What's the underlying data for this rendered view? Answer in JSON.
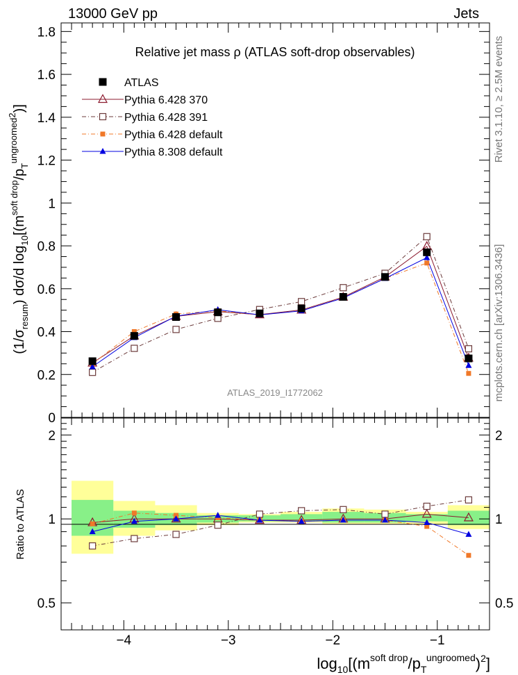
{
  "header": {
    "left": "13000 GeV pp",
    "right": "Jets"
  },
  "title": "Relative jet mass  ρ (ATLAS soft-drop observables)",
  "side_labels": {
    "top": "Rivet 3.1.10, ≥ 2.5M events",
    "bottom": "mcplots.cern.ch [arXiv:1306.3436]"
  },
  "watermark": "ATLAS_2019_I1772062",
  "ratio_ylabel": "Ratio to ATLAS",
  "colors": {
    "data": "#000000",
    "p370": "#8b1a2e",
    "p391": "#6b3a3a",
    "p6def": "#f07828",
    "p8": "#0000e0",
    "band_inner": "#88f088",
    "band_outer": "#ffff99"
  },
  "chart_data": {
    "type": "line",
    "xlabel": "log10[(m soft drop / pT ungroomed)2]",
    "ylabel": "(1/σresum) dσ/d log10[(m soft drop/pT ungroomed)2]",
    "x_ticks": [
      "−4",
      "−3",
      "−2",
      "−1"
    ],
    "x_tick_values": [
      -4,
      -3,
      -2,
      -1
    ],
    "xlim": [
      -4.6,
      -0.5
    ],
    "ylim": [
      0,
      1.84
    ],
    "y_ticks": [
      "0",
      "0.2",
      "0.4",
      "0.6",
      "0.8",
      "1",
      "1.2",
      "1.4",
      "1.6",
      "1.8"
    ],
    "y_tick_values": [
      0,
      0.2,
      0.4,
      0.6,
      0.8,
      1.0,
      1.2,
      1.4,
      1.6,
      1.8
    ],
    "ratio_ylim": [
      0.4,
      2.3
    ],
    "ratio_y_ticks": [
      "0.5",
      "1",
      "2"
    ],
    "ratio_y_tick_values": [
      0.5,
      1,
      2
    ],
    "bin_edges": [
      -4.5,
      -4.1,
      -3.7,
      -3.3,
      -2.9,
      -2.5,
      -2.1,
      -1.7,
      -1.3,
      -0.9,
      -0.5
    ],
    "x": [
      -4.3,
      -3.9,
      -3.5,
      -3.1,
      -2.7,
      -2.3,
      -1.9,
      -1.5,
      -1.1,
      -0.7
    ],
    "ratio_band_inner": [
      [
        0.87,
        1.17
      ],
      [
        0.93,
        1.07
      ],
      [
        0.95,
        1.05
      ],
      [
        0.97,
        1.03
      ],
      [
        0.98,
        1.03
      ],
      [
        0.98,
        1.04
      ],
      [
        0.97,
        1.06
      ],
      [
        0.97,
        1.05
      ],
      [
        0.98,
        1.04
      ],
      [
        0.95,
        1.07
      ]
    ],
    "ratio_band_outer": [
      [
        0.75,
        1.37
      ],
      [
        0.87,
        1.16
      ],
      [
        0.91,
        1.12
      ],
      [
        0.95,
        1.05
      ],
      [
        0.97,
        1.04
      ],
      [
        0.97,
        1.06
      ],
      [
        0.96,
        1.09
      ],
      [
        0.96,
        1.08
      ],
      [
        0.96,
        1.06
      ],
      [
        0.92,
        1.12
      ]
    ],
    "series": [
      {
        "name": "ATLAS",
        "color": "#000000",
        "marker": "square-filled",
        "line": "none",
        "values": [
          0.262,
          0.38,
          0.468,
          0.49,
          0.485,
          0.508,
          0.562,
          0.655,
          0.77,
          0.275
        ]
      },
      {
        "name": "Pythia 6.428 370",
        "color": "#8b1a2e",
        "marker": "triangle-open",
        "line": "solid",
        "values": [
          0.254,
          0.38,
          0.471,
          0.493,
          0.479,
          0.501,
          0.561,
          0.655,
          0.798,
          0.277
        ],
        "ratio": [
          0.97,
          1.0,
          1.0,
          1.0,
          0.99,
          0.99,
          1.0,
          1.0,
          1.04,
          1.01
        ]
      },
      {
        "name": "Pythia 6.428 391",
        "color": "#6b3a3a",
        "marker": "square-open",
        "line": "dashdot",
        "values": [
          0.21,
          0.322,
          0.41,
          0.462,
          0.503,
          0.54,
          0.605,
          0.672,
          0.843,
          0.32
        ],
        "ratio": [
          0.8,
          0.85,
          0.88,
          0.95,
          1.04,
          1.07,
          1.08,
          1.04,
          1.11,
          1.17
        ]
      },
      {
        "name": "Pythia 6.428 default",
        "color": "#f07828",
        "marker": "square-filled-small",
        "line": "dashdot",
        "values": [
          0.25,
          0.4,
          0.482,
          0.497,
          0.478,
          0.497,
          0.558,
          0.648,
          0.72,
          0.205
        ],
        "ratio": [
          0.96,
          1.05,
          1.03,
          1.01,
          0.99,
          0.98,
          0.99,
          0.99,
          0.94,
          0.74
        ]
      },
      {
        "name": "Pythia 8.308 default",
        "color": "#0000e0",
        "marker": "triangle-filled",
        "line": "solid",
        "values": [
          0.236,
          0.372,
          0.472,
          0.502,
          0.478,
          0.497,
          0.557,
          0.648,
          0.745,
          0.242
        ],
        "ratio": [
          0.9,
          0.98,
          1.0,
          1.03,
          0.99,
          0.98,
          0.99,
          0.99,
          0.97,
          0.88
        ]
      }
    ]
  }
}
